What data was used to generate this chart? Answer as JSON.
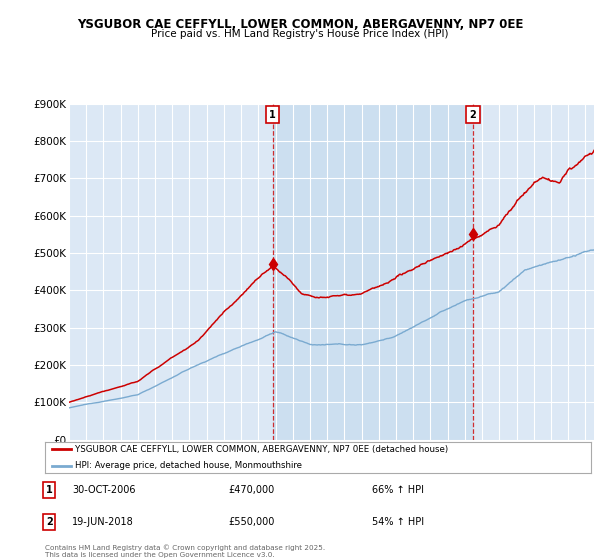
{
  "title1": "YSGUBOR CAE CEFFYLL, LOWER COMMON, ABERGAVENNY, NP7 0EE",
  "title2": "Price paid vs. HM Land Registry's House Price Index (HPI)",
  "ylim": [
    0,
    900000
  ],
  "yticks": [
    0,
    100000,
    200000,
    300000,
    400000,
    500000,
    600000,
    700000,
    800000,
    900000
  ],
  "ytick_labels": [
    "£0",
    "£100K",
    "£200K",
    "£300K",
    "£400K",
    "£500K",
    "£600K",
    "£700K",
    "£800K",
    "£900K"
  ],
  "sale1_x": 2006.83,
  "sale1_y": 470000,
  "sale2_x": 2018.46,
  "sale2_y": 550000,
  "line1_color": "#cc0000",
  "line2_color": "#7aaad0",
  "background_color": "#dce8f5",
  "highlight_color": "#ccdff0",
  "grid_color": "#ffffff",
  "legend_line1": "YSGUBOR CAE CEFFYLL, LOWER COMMON, ABERGAVENNY, NP7 0EE (detached house)",
  "legend_line2": "HPI: Average price, detached house, Monmouthshire",
  "annotation1_date": "30-OCT-2006",
  "annotation1_price": "£470,000",
  "annotation1_hpi": "66% ↑ HPI",
  "annotation2_date": "19-JUN-2018",
  "annotation2_price": "£550,000",
  "annotation2_hpi": "54% ↑ HPI",
  "footer": "Contains HM Land Registry data © Crown copyright and database right 2025.\nThis data is licensed under the Open Government Licence v3.0.",
  "xmin": 1995.0,
  "xmax": 2025.5
}
